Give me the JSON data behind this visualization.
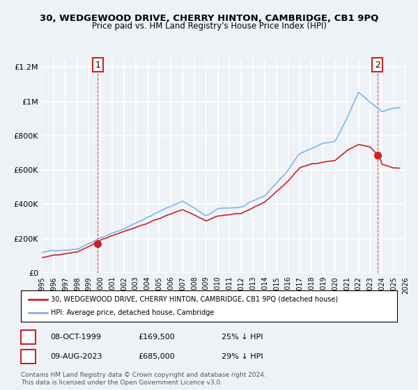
{
  "title": "30, WEDGEWOOD DRIVE, CHERRY HINTON, CAMBRIDGE, CB1 9PQ",
  "subtitle": "Price paid vs. HM Land Registry's House Price Index (HPI)",
  "background_color": "#eef2f7",
  "plot_bg_color": "#eef2f7",
  "grid_color": "#ffffff",
  "hpi_color": "#7eb6e8",
  "price_color": "#cc2222",
  "ylim": [
    0,
    1250000
  ],
  "xlim_start": 1995.0,
  "xlim_end": 2026.0,
  "yticks": [
    0,
    200000,
    400000,
    600000,
    800000,
    1000000,
    1200000
  ],
  "ytick_labels": [
    "£0",
    "£200K",
    "£400K",
    "£600K",
    "£800K",
    "£1M",
    "£1.2M"
  ],
  "xtick_years": [
    1995,
    1996,
    1997,
    1998,
    1999,
    2000,
    2001,
    2002,
    2003,
    2004,
    2005,
    2006,
    2007,
    2008,
    2009,
    2010,
    2011,
    2012,
    2013,
    2014,
    2015,
    2016,
    2017,
    2018,
    2019,
    2020,
    2021,
    2022,
    2023,
    2024,
    2025,
    2026
  ],
  "marker1_x": 1999.77,
  "marker1_y": 169500,
  "marker1_label": "1",
  "marker1_date": "08-OCT-1999",
  "marker1_price": "£169,500",
  "marker1_hpi": "25% ↓ HPI",
  "marker2_x": 2023.6,
  "marker2_y": 685000,
  "marker2_label": "2",
  "marker2_date": "09-AUG-2023",
  "marker2_price": "£685,000",
  "marker2_hpi": "29% ↓ HPI",
  "legend_line1": "30, WEDGEWOOD DRIVE, CHERRY HINTON, CAMBRIDGE, CB1 9PQ (detached house)",
  "legend_line2": "HPI: Average price, detached house, Cambridge",
  "footer1": "Contains HM Land Registry data © Crown copyright and database right 2024.",
  "footer2": "This data is licensed under the Open Government Licence v3.0."
}
